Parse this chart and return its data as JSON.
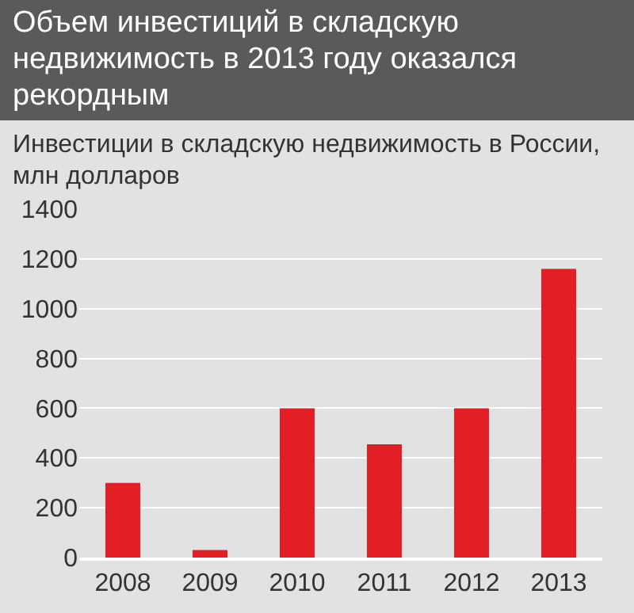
{
  "chart_data": {
    "type": "bar",
    "title": "Объем инвестиций в складскую недвижимость в 2013 году оказался рекордным",
    "subtitle": "Инвестиции в складскую недвижимость в России, млн долларов",
    "categories": [
      "2008",
      "2009",
      "2010",
      "2011",
      "2012",
      "2013"
    ],
    "values": [
      300,
      30,
      600,
      455,
      600,
      1160
    ],
    "color": "#e31e24",
    "ylim": [
      0,
      1400
    ],
    "yticks": [
      0,
      200,
      400,
      600,
      800,
      1000,
      1200,
      1400
    ],
    "grid": "y"
  }
}
